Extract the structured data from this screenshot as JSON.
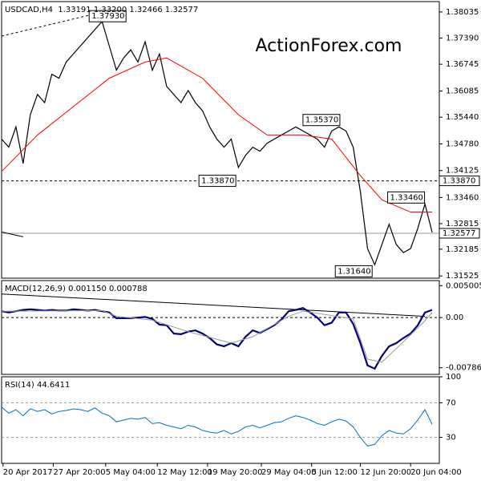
{
  "chart_data": [
    {
      "type": "line",
      "title": "USDCAD,H4  1.33191 1.33200 1.32466 1.32577",
      "watermark": "ActionForex.com",
      "xlim": [
        0,
        61
      ],
      "ylim": [
        1.3147,
        1.3829
      ],
      "yticks": [
        {
          "value": 1.38035,
          "label": "1.38035"
        },
        {
          "value": 1.3739,
          "label": "1.37390"
        },
        {
          "value": 1.36745,
          "label": "1.36745"
        },
        {
          "value": 1.36085,
          "label": "1.36085"
        },
        {
          "value": 1.3544,
          "label": "1.35440"
        },
        {
          "value": 1.3478,
          "label": "1.34780"
        },
        {
          "value": 1.34125,
          "label": "1.34125"
        },
        {
          "value": 1.3346,
          "label": "1.33460"
        },
        {
          "value": 1.32815,
          "label": "1.32815"
        },
        {
          "value": 1.32185,
          "label": "1.32185"
        },
        {
          "value": 1.31525,
          "label": "1.31525"
        }
      ],
      "series": [
        {
          "color": "#000000",
          "width": 1.2,
          "values": [
            1.349,
            1.347,
            1.352,
            1.343,
            1.355,
            1.36,
            1.358,
            1.365,
            1.364,
            1.368,
            1.37,
            1.372,
            1.374,
            1.376,
            1.378,
            1.372,
            1.366,
            1.369,
            1.371,
            1.368,
            1.373,
            1.366,
            1.37,
            1.362,
            1.36,
            1.358,
            1.361,
            1.358,
            1.356,
            1.352,
            1.349,
            1.347,
            1.349,
            1.342,
            1.345,
            1.347,
            1.346,
            1.348,
            1.349,
            1.35,
            1.351,
            1.352,
            1.351,
            1.35,
            1.349,
            1.347,
            1.351,
            1.352,
            1.351,
            1.347,
            1.336,
            1.322,
            1.318,
            1.323,
            1.328,
            1.323,
            1.321,
            1.322,
            1.327,
            1.333,
            1.326
          ]
        },
        {
          "color": "#ff0000",
          "width": 1,
          "x": [
            0,
            5,
            10,
            15,
            20,
            23,
            28,
            33,
            37,
            42,
            46,
            50,
            53,
            57,
            60
          ],
          "values": [
            1.341,
            1.35,
            1.357,
            1.364,
            1.368,
            1.369,
            1.364,
            1.355,
            1.35,
            1.35,
            1.349,
            1.34,
            1.334,
            1.331,
            1.331
          ]
        }
      ],
      "hlines": [
        {
          "value": 1.3387,
          "label": "1.33870",
          "dash": true,
          "color": "#000000"
        },
        {
          "value": 1.32577,
          "label": "1.32577",
          "dash": false,
          "color": "#999999"
        }
      ],
      "annotations": [
        {
          "x": 12.2,
          "value": 1.3793,
          "label": "1.37930"
        },
        {
          "x": 27.5,
          "value": 1.3387,
          "label": "1.33870"
        },
        {
          "x": 42,
          "value": 1.3537,
          "label": "1.35370"
        },
        {
          "x": 53.8,
          "value": 1.3346,
          "label": "1.33460"
        },
        {
          "x": 46.5,
          "value": 1.3164,
          "label": "1.31640"
        }
      ],
      "trendlines": [
        {
          "dash": true,
          "points": [
            [
              0,
              1.3744
            ],
            [
              14,
              1.3803
            ]
          ]
        },
        {
          "dash": false,
          "points": [
            [
              0,
              1.3261
            ],
            [
              3,
              1.3249
            ]
          ]
        }
      ]
    },
    {
      "type": "line",
      "title": "MACD(12,26,9) 0.001150 0.000788",
      "xlim": [
        0,
        61
      ],
      "ylim": [
        -0.0089,
        0.0058
      ],
      "yticks": [
        0.005005,
        {
          "value": 0,
          "label": "0.00"
        },
        -0.007862
      ],
      "series": [
        {
          "color": "#00007f",
          "width": 2.2,
          "values": [
            0.001,
            0.0008,
            0.001,
            0.0012,
            0.0013,
            0.0012,
            0.0011,
            0.0012,
            0.0011,
            0.0011,
            0.0013,
            0.0012,
            0.0011,
            0.0012,
            0.001,
            0.0008,
            -0.0001,
            -0.0001,
            -0.0001,
            0,
            0.0001,
            -0.0002,
            -0.0011,
            -0.0012,
            -0.0025,
            -0.0026,
            -0.0022,
            -0.002,
            -0.0025,
            -0.0032,
            -0.0042,
            -0.0045,
            -0.004,
            -0.0045,
            -0.003,
            -0.002,
            -0.0024,
            -0.0018,
            -0.0012,
            -0.0003,
            0.001,
            0.0012,
            0.0015,
            0.0008,
            0,
            -0.0012,
            -0.0008,
            0.0008,
            0.0008,
            -0.001,
            -0.004,
            -0.0075,
            -0.008,
            -0.006,
            -0.0045,
            -0.004,
            -0.0032,
            -0.0025,
            -0.0012,
            0.0008,
            0.0012
          ]
        },
        {
          "color": "#999999",
          "width": 1,
          "x": [
            0,
            14,
            16,
            21,
            26,
            32,
            35,
            40,
            42,
            45,
            49,
            51,
            53,
            56,
            59,
            60
          ],
          "values": [
            0.001,
            0.0011,
            0.0002,
            -0.0004,
            -0.0022,
            -0.004,
            -0.003,
            0.0002,
            0.001,
            0.0005,
            -0.0002,
            -0.0065,
            -0.007,
            -0.0038,
            -0.0005,
            0.0008
          ]
        }
      ],
      "hlines": [
        {
          "value": 0,
          "dash": true,
          "color": "#000000"
        }
      ],
      "trendlines": [
        {
          "dash": false,
          "points": [
            [
              0,
              0.0037
            ],
            [
              59,
              0.0002
            ]
          ]
        }
      ]
    },
    {
      "type": "line",
      "title": "RSI(14) 44.6411",
      "xlim": [
        0,
        61
      ],
      "ylim": [
        0,
        100
      ],
      "yticks": [
        100,
        70,
        30
      ],
      "xticks": [
        {
          "value": 0.2,
          "label": "20 Apr 2017"
        },
        {
          "value": 7.2,
          "label": "27 Apr 20:00"
        },
        {
          "value": 14.5,
          "label": "5 May 04:00"
        },
        {
          "value": 21.7,
          "label": "12 May 12:00"
        },
        {
          "value": 28.7,
          "label": "19 May 20:00"
        },
        {
          "value": 36.2,
          "label": "29 May 04:00"
        },
        {
          "value": 43.2,
          "label": "5 Jun 12:00"
        },
        {
          "value": 50,
          "label": "12 Jun 20:00"
        },
        {
          "value": 57,
          "label": "20 Jun 04:00"
        }
      ],
      "series": [
        {
          "color": "#0070c0",
          "width": 1,
          "values": [
            65,
            58,
            62,
            55,
            63,
            60,
            62,
            57,
            60,
            61,
            63,
            62,
            60,
            64,
            58,
            55,
            48,
            50,
            52,
            51,
            53,
            46,
            47,
            44,
            42,
            40,
            44,
            42,
            38,
            36,
            35,
            38,
            34,
            37,
            42,
            44,
            41,
            44,
            47,
            48,
            52,
            55,
            53,
            50,
            46,
            44,
            48,
            51,
            49,
            42,
            30,
            20,
            22,
            32,
            38,
            35,
            34,
            40,
            50,
            62,
            45
          ]
        }
      ],
      "hlines": [
        {
          "value": 70,
          "dash": true,
          "color": "#999999"
        },
        {
          "value": 30,
          "dash": true,
          "color": "#999999"
        }
      ]
    }
  ]
}
